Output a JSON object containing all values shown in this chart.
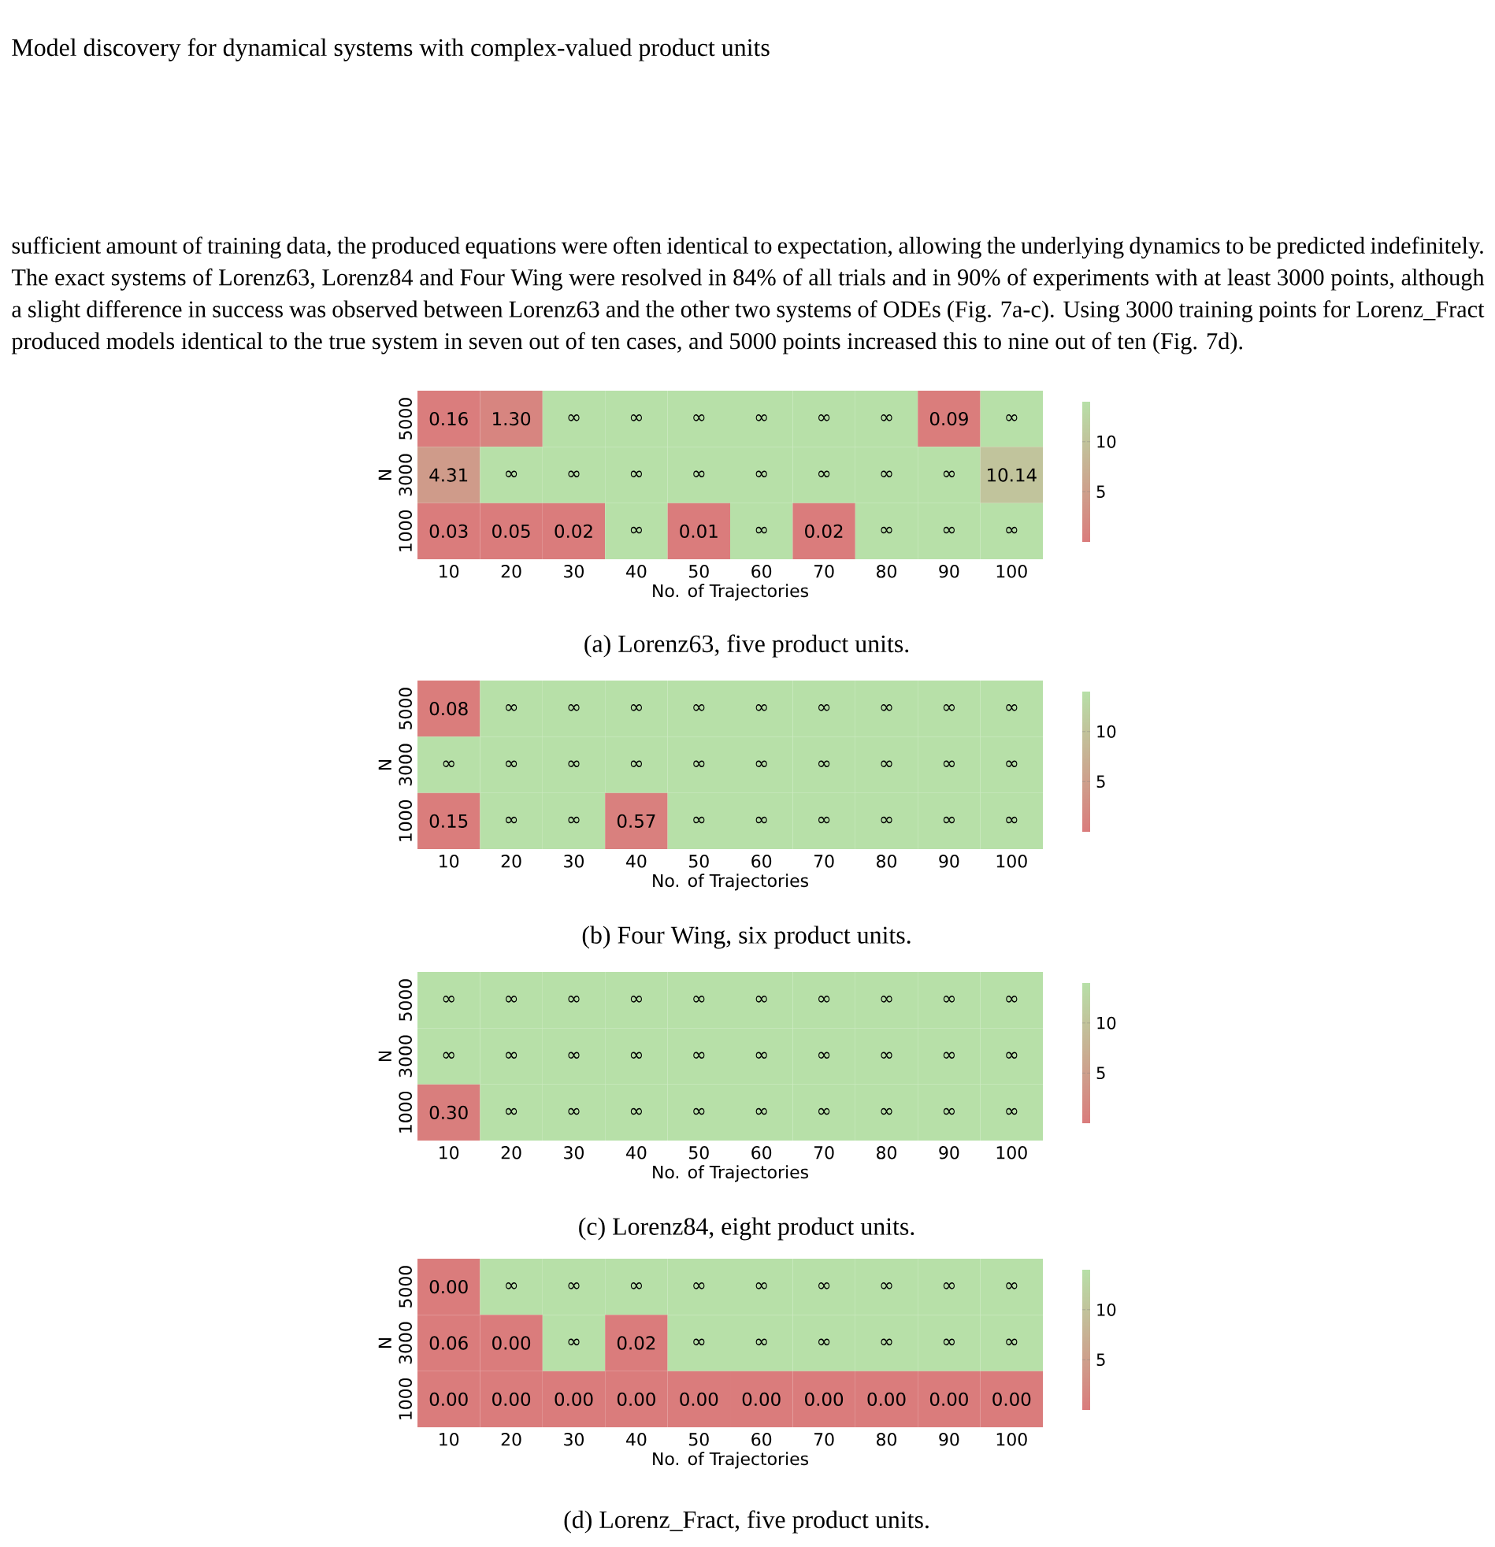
{
  "chart_data": [
    {
      "type": "heatmap",
      "title": "Model discovery for dynamical systems with complex-valued product units",
      "subtitle": "sufficient amount of training data, the produced equations were often identical to expectation, allowing the underlying dynamics to be predicted indefinitely. The exact systems of Lorenz63, Lorenz84 and Four Wing were resolved in 84% of all trials and in 90% of experiments with at least 3000 points, although a slight difference in success was observed between Lorenz63 and the other two systems of ODEs (Fig. 7a-c). Using 3000 training points for Lorenz_Fract produced models identical to the true system in seven out of ten cases, and 5000 points increased this to nine out of ten (Fig. 7d).",
      "annotations": [
        "(a) Lorenz63, five product units."
      ],
      "xlabel": "No. of Trajectories",
      "ylabel": "N",
      "categories": [
        "10",
        "20",
        "30",
        "40",
        "50",
        "60",
        "70",
        "80",
        "90",
        "100"
      ],
      "y_categories": [
        "5000",
        "3000",
        "1000"
      ],
      "cells": [
        [
          0.16,
          1.3,
          14,
          14,
          14,
          14,
          14,
          14,
          0.09,
          14
        ],
        [
          4.31,
          14,
          14,
          14,
          14,
          14,
          14,
          14,
          14,
          10.14
        ],
        [
          0.03,
          0.05,
          0.02,
          14,
          0.01,
          14,
          0.02,
          14,
          14,
          14
        ]
      ],
      "cell_labels": [
        [
          "0.16",
          "1.30",
          "∞",
          "∞",
          "∞",
          "∞",
          "∞",
          "∞",
          "0.09",
          "∞"
        ],
        [
          "4.31",
          "∞",
          "∞",
          "∞",
          "∞",
          "∞",
          "∞",
          "∞",
          "∞",
          "10.14"
        ],
        [
          "0.03",
          "0.05",
          "0.02",
          "∞",
          "0.01",
          "∞",
          "0.02",
          "∞",
          "∞",
          "∞"
        ]
      ],
      "clim": [
        0,
        14
      ],
      "cticks": [
        5,
        10
      ]
    },
    {
      "type": "heatmap",
      "annotations": [
        "(b) Four Wing, six product units."
      ],
      "xlabel": "No. of Trajectories",
      "ylabel": "N",
      "categories": [
        "10",
        "20",
        "30",
        "40",
        "50",
        "60",
        "70",
        "80",
        "90",
        "100"
      ],
      "y_categories": [
        "5000",
        "3000",
        "1000"
      ],
      "cells": [
        [
          0.08,
          14,
          14,
          14,
          14,
          14,
          14,
          14,
          14,
          14
        ],
        [
          14,
          14,
          14,
          14,
          14,
          14,
          14,
          14,
          14,
          14
        ],
        [
          0.15,
          14,
          14,
          0.57,
          14,
          14,
          14,
          14,
          14,
          14
        ]
      ],
      "cell_labels": [
        [
          "0.08",
          "∞",
          "∞",
          "∞",
          "∞",
          "∞",
          "∞",
          "∞",
          "∞",
          "∞"
        ],
        [
          "∞",
          "∞",
          "∞",
          "∞",
          "∞",
          "∞",
          "∞",
          "∞",
          "∞",
          "∞"
        ],
        [
          "0.15",
          "∞",
          "∞",
          "0.57",
          "∞",
          "∞",
          "∞",
          "∞",
          "∞",
          "∞"
        ]
      ],
      "clim": [
        0,
        14
      ],
      "cticks": [
        5,
        10
      ]
    },
    {
      "type": "heatmap",
      "annotations": [
        "(c) Lorenz84, eight product units."
      ],
      "xlabel": "No. of Trajectories",
      "ylabel": "N",
      "categories": [
        "10",
        "20",
        "30",
        "40",
        "50",
        "60",
        "70",
        "80",
        "90",
        "100"
      ],
      "y_categories": [
        "5000",
        "3000",
        "1000"
      ],
      "cells": [
        [
          14,
          14,
          14,
          14,
          14,
          14,
          14,
          14,
          14,
          14
        ],
        [
          14,
          14,
          14,
          14,
          14,
          14,
          14,
          14,
          14,
          14
        ],
        [
          0.3,
          14,
          14,
          14,
          14,
          14,
          14,
          14,
          14,
          14
        ]
      ],
      "cell_labels": [
        [
          "∞",
          "∞",
          "∞",
          "∞",
          "∞",
          "∞",
          "∞",
          "∞",
          "∞",
          "∞"
        ],
        [
          "∞",
          "∞",
          "∞",
          "∞",
          "∞",
          "∞",
          "∞",
          "∞",
          "∞",
          "∞"
        ],
        [
          "0.30",
          "∞",
          "∞",
          "∞",
          "∞",
          "∞",
          "∞",
          "∞",
          "∞",
          "∞"
        ]
      ],
      "clim": [
        0,
        14
      ],
      "cticks": [
        5,
        10
      ]
    },
    {
      "type": "heatmap",
      "annotations": [
        "(d) Lorenz_Fract, five product units."
      ],
      "xlabel": "No. of Trajectories",
      "ylabel": "N",
      "categories": [
        "10",
        "20",
        "30",
        "40",
        "50",
        "60",
        "70",
        "80",
        "90",
        "100"
      ],
      "y_categories": [
        "5000",
        "3000",
        "1000"
      ],
      "cells": [
        [
          0.0,
          14,
          14,
          14,
          14,
          14,
          14,
          14,
          14,
          14
        ],
        [
          0.06,
          0.0,
          14,
          0.02,
          14,
          14,
          14,
          14,
          14,
          14
        ],
        [
          0.0,
          0.0,
          0.0,
          0.0,
          0.0,
          0.0,
          0.0,
          0.0,
          0.0,
          0.0
        ]
      ],
      "cell_labels": [
        [
          "0.00",
          "∞",
          "∞",
          "∞",
          "∞",
          "∞",
          "∞",
          "∞",
          "∞",
          "∞"
        ],
        [
          "0.06",
          "0.00",
          "∞",
          "0.02",
          "∞",
          "∞",
          "∞",
          "∞",
          "∞",
          "∞"
        ],
        [
          "0.00",
          "0.00",
          "0.00",
          "0.00",
          "0.00",
          "0.00",
          "0.00",
          "0.00",
          "0.00",
          "0.00"
        ]
      ],
      "clim": [
        0,
        14
      ],
      "cticks": [
        5,
        10
      ]
    }
  ]
}
